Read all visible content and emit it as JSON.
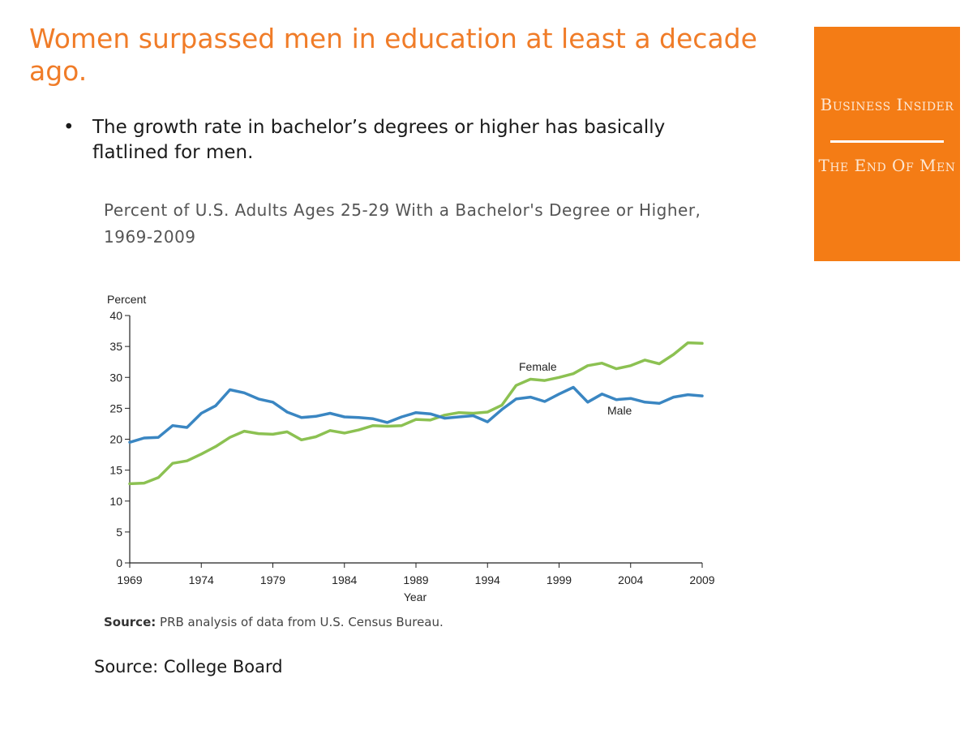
{
  "slide": {
    "title": "Women surpassed men in education at least a decade ago.",
    "bullet": "The growth rate in bachelor’s degrees or higher has basically flatlined for men.",
    "bullet_marker": "•",
    "source_note": "Source: College Board"
  },
  "brand": {
    "name": "Business Insider",
    "tagline": "The End Of Men",
    "background_color": "#f47c15"
  },
  "chart_data": {
    "type": "line",
    "title": "Percent of U.S. Adults Ages 25-29 With a Bachelor's Degree or Higher, 1969-2009",
    "ylabel": "Percent",
    "xlabel": "Year",
    "ylim": [
      0,
      40
    ],
    "xlim": [
      1969,
      2009
    ],
    "yticks": [
      0,
      5,
      10,
      15,
      20,
      25,
      30,
      35,
      40
    ],
    "xticks": [
      1969,
      1974,
      1979,
      1984,
      1989,
      1994,
      1999,
      2004,
      2009
    ],
    "grid": false,
    "legend": "inline labels",
    "x": [
      1969,
      1970,
      1971,
      1972,
      1973,
      1974,
      1975,
      1976,
      1977,
      1978,
      1979,
      1980,
      1981,
      1982,
      1983,
      1984,
      1985,
      1986,
      1987,
      1988,
      1989,
      1990,
      1991,
      1992,
      1993,
      1994,
      1995,
      1996,
      1997,
      1998,
      1999,
      2000,
      2001,
      2002,
      2003,
      2004,
      2005,
      2006,
      2007,
      2008,
      2009
    ],
    "series": [
      {
        "name": "Male",
        "color": "#3a86c2",
        "values": [
          19.5,
          20.2,
          20.3,
          22.2,
          21.9,
          24.2,
          25.4,
          28.0,
          27.5,
          26.5,
          26.0,
          24.4,
          23.5,
          23.7,
          24.2,
          23.6,
          23.5,
          23.3,
          22.7,
          23.6,
          24.3,
          24.1,
          23.4,
          23.6,
          23.8,
          22.8,
          24.8,
          26.5,
          26.8,
          26.1,
          27.3,
          28.4,
          26.0,
          27.3,
          26.4,
          26.6,
          26.0,
          25.8,
          26.8,
          27.2,
          27.0
        ]
      },
      {
        "name": "Female",
        "color": "#8cc152",
        "values": [
          12.8,
          12.9,
          13.8,
          16.1,
          16.5,
          17.6,
          18.8,
          20.3,
          21.3,
          20.9,
          20.8,
          21.2,
          19.9,
          20.4,
          21.4,
          21.0,
          21.5,
          22.2,
          22.1,
          22.2,
          23.2,
          23.1,
          23.9,
          24.3,
          24.2,
          24.4,
          25.5,
          28.7,
          29.7,
          29.5,
          30.0,
          30.6,
          31.9,
          32.3,
          31.4,
          31.9,
          32.8,
          32.2,
          33.7,
          35.6,
          35.5
        ]
      }
    ],
    "source_label": "Source:",
    "source_text": "PRB analysis of data from U.S. Census Bureau."
  }
}
